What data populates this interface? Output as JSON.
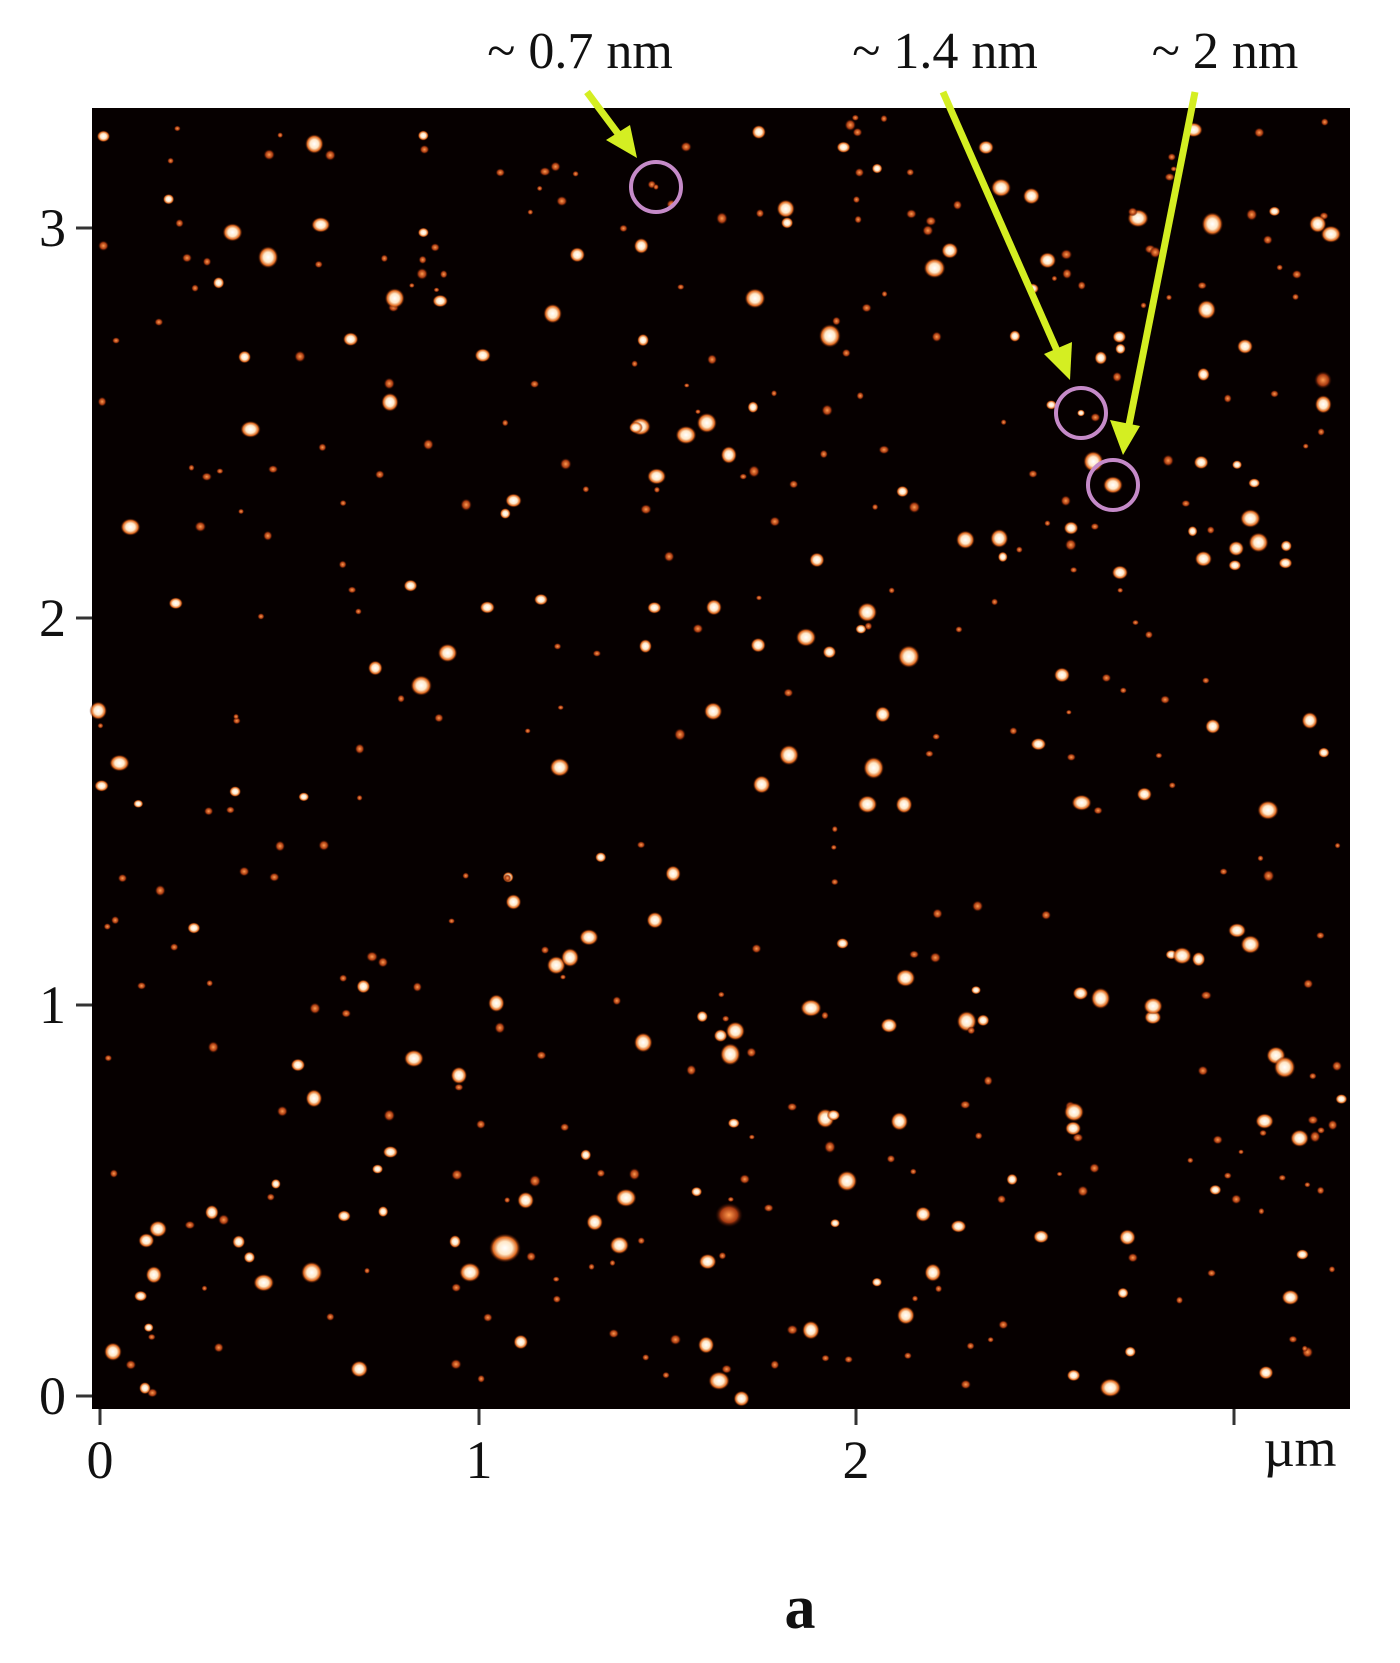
{
  "annotations": [
    "~ 0.7 nm",
    "~ 1.4 nm",
    "~ 2 nm"
  ],
  "x_axis": {
    "ticks": [
      "0",
      "1",
      "2"
    ],
    "unit": "µm"
  },
  "y_axis": {
    "ticks": [
      "0",
      "1",
      "2",
      "3"
    ]
  },
  "panel_label": "a"
}
